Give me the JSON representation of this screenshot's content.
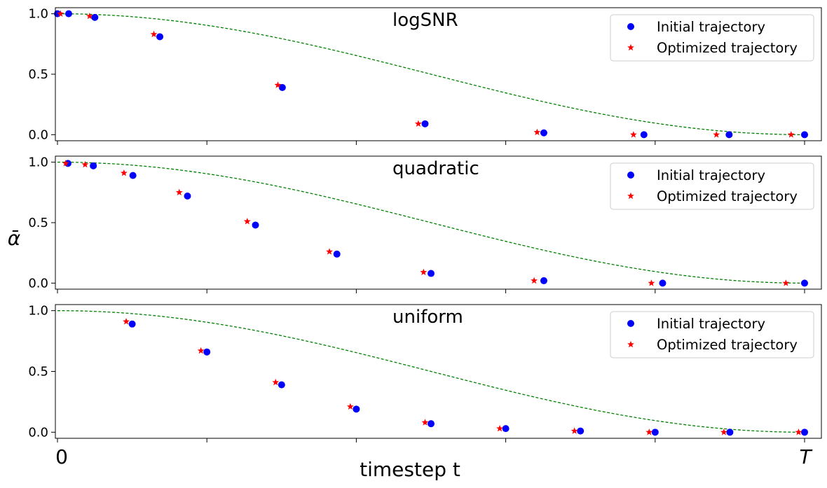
{
  "chart_data": {
    "type": "scatter",
    "xlabel": "timestep t",
    "ylabel": "ᾱ",
    "x_tick_labels": {
      "start": "0",
      "end": "T"
    },
    "xlim": [
      0,
      1
    ],
    "ylim": [
      -0.05,
      1.05
    ],
    "yticks": [
      "0.0",
      "0.5",
      "1.0"
    ],
    "legend": {
      "position": "top-right",
      "entries": [
        "Initial trajectory",
        "Optimized trajectory"
      ]
    },
    "colors": {
      "initial": "#0000ff",
      "optimized": "#ff0000",
      "curve": "#008000",
      "axes": "#000000"
    },
    "curve": "cosine schedule (green dashed)",
    "panels": [
      {
        "title": "logSNR",
        "series": [
          {
            "name": "Initial trajectory",
            "x": [
              0.0,
              0.015,
              0.05,
              0.137,
              0.301,
              0.492,
              0.651,
              0.785,
              0.899,
              1.0
            ],
            "y": [
              1.0,
              1.0,
              0.97,
              0.81,
              0.39,
              0.09,
              0.015,
              0.0,
              0.0,
              0.0
            ]
          },
          {
            "name": "Optimized trajectory",
            "x": [
              0.004,
              0.043,
              0.129,
              0.295,
              0.483,
              0.642,
              0.771,
              0.882,
              0.982
            ],
            "y": [
              1.0,
              0.98,
              0.83,
              0.41,
              0.09,
              0.02,
              0.0,
              0.0,
              0.0
            ]
          }
        ]
      },
      {
        "title": "quadratic",
        "series": [
          {
            "name": "Initial trajectory",
            "x": [
              0.014,
              0.048,
              0.101,
              0.174,
              0.265,
              0.374,
              0.5,
              0.651,
              0.81,
              1.0
            ],
            "y": [
              0.99,
              0.97,
              0.89,
              0.72,
              0.48,
              0.24,
              0.08,
              0.02,
              0.0,
              0.0
            ]
          },
          {
            "name": "Optimized trajectory",
            "x": [
              0.011,
              0.037,
              0.089,
              0.163,
              0.254,
              0.364,
              0.49,
              0.638,
              0.795,
              0.975
            ],
            "y": [
              0.99,
              0.98,
              0.91,
              0.75,
              0.51,
              0.26,
              0.09,
              0.02,
              0.0,
              0.0
            ]
          }
        ]
      },
      {
        "title": "uniform",
        "series": [
          {
            "name": "Initial trajectory",
            "x": [
              0.1,
              0.2,
              0.3,
              0.4,
              0.5,
              0.6,
              0.7,
              0.8,
              0.9,
              1.0
            ],
            "y": [
              0.89,
              0.66,
              0.39,
              0.19,
              0.07,
              0.03,
              0.01,
              0.0,
              0.0,
              0.0
            ]
          },
          {
            "name": "Optimized trajectory",
            "x": [
              0.092,
              0.192,
              0.292,
              0.392,
              0.492,
              0.592,
              0.692,
              0.792,
              0.892,
              0.992
            ],
            "y": [
              0.91,
              0.67,
              0.41,
              0.21,
              0.08,
              0.03,
              0.01,
              0.0,
              0.0,
              0.0
            ]
          }
        ]
      }
    ]
  }
}
